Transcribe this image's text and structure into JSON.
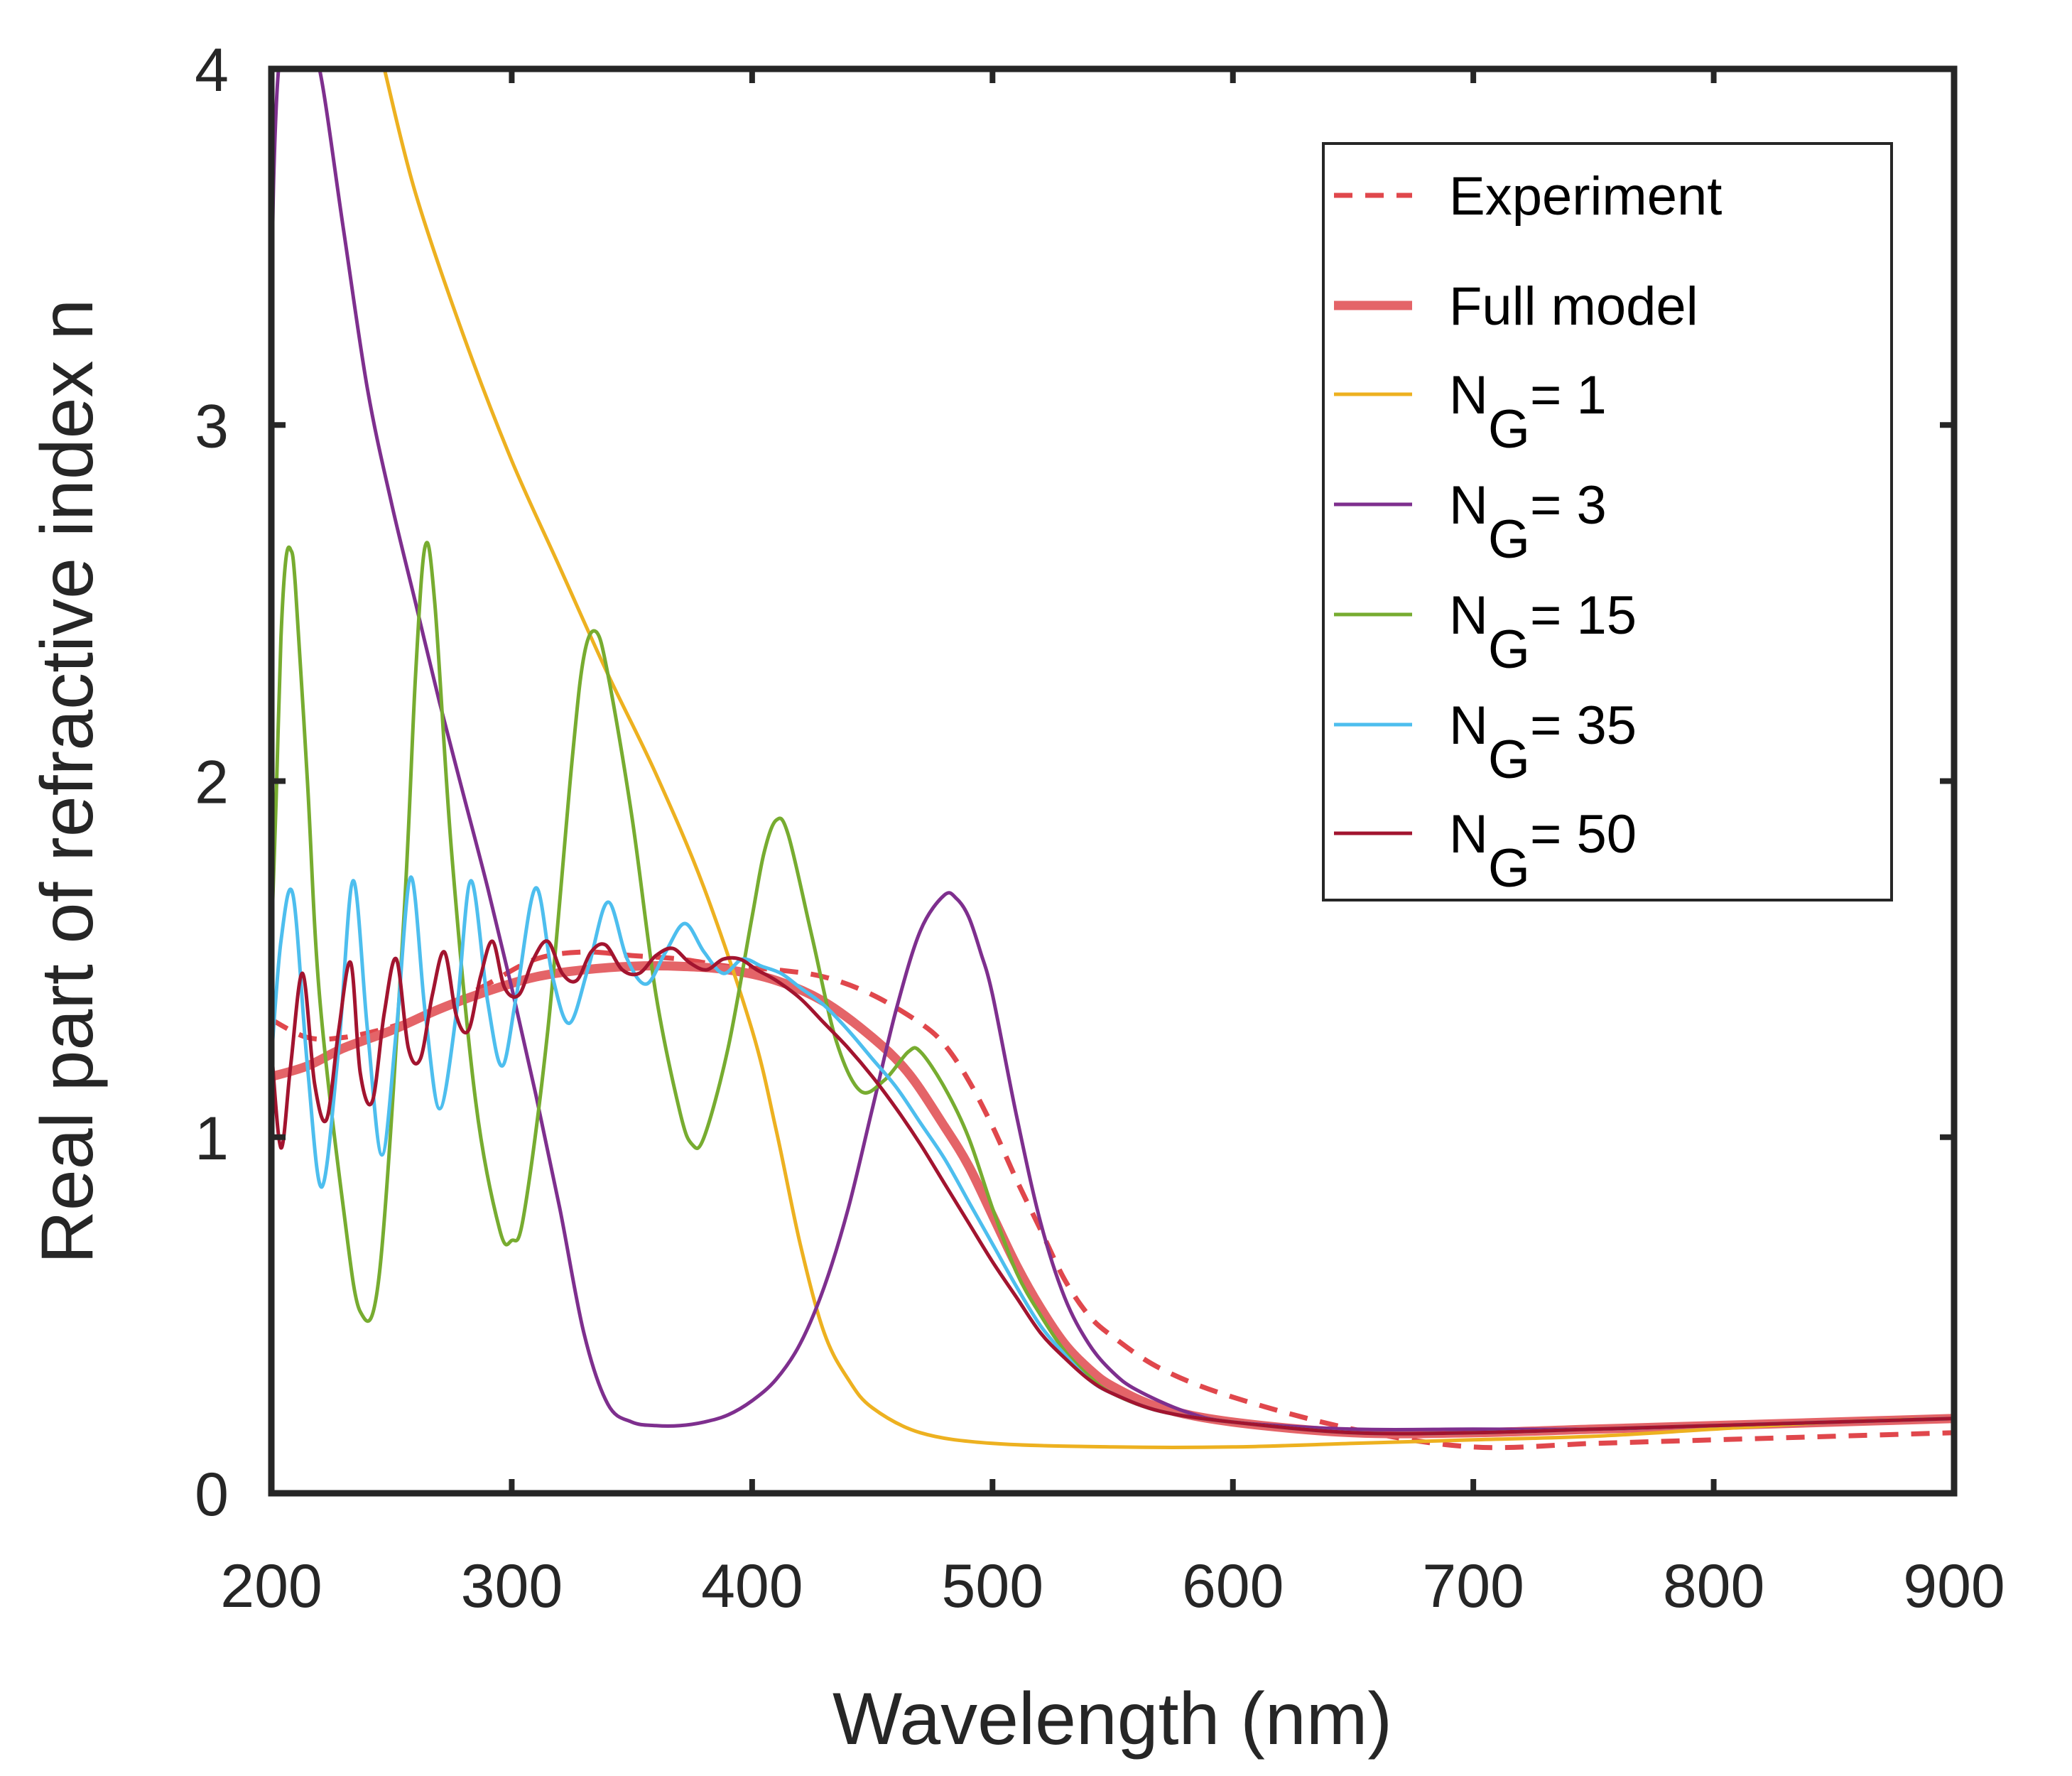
{
  "chart_data": {
    "type": "line",
    "xlabel": "Wavelength (nm)",
    "ylabel": "Real part of refractive index n",
    "xlim": [
      200,
      900
    ],
    "ylim": [
      0,
      4
    ],
    "xticks": [
      200,
      300,
      400,
      500,
      600,
      700,
      800,
      900
    ],
    "yticks": [
      0,
      1,
      2,
      3,
      4
    ],
    "grid": false,
    "legend_position": "top-right",
    "series": [
      {
        "name": "Experiment",
        "legend_main": "Experiment",
        "legend_sub": "",
        "legend_tail": "",
        "color": "#e0474c",
        "style": "dashed",
        "x": [
          200,
          215,
          230,
          250,
          270,
          290,
          310,
          330,
          350,
          370,
          390,
          410,
          430,
          450,
          470,
          480,
          490,
          500,
          510,
          520,
          530,
          540,
          550,
          570,
          600,
          650,
          700,
          750,
          800,
          850,
          900
        ],
        "y": [
          1.33,
          1.28,
          1.28,
          1.31,
          1.36,
          1.43,
          1.5,
          1.52,
          1.51,
          1.5,
          1.48,
          1.47,
          1.45,
          1.4,
          1.32,
          1.26,
          1.16,
          1.03,
          0.88,
          0.74,
          0.6,
          0.5,
          0.44,
          0.35,
          0.27,
          0.18,
          0.13,
          0.14,
          0.15,
          0.16,
          0.17
        ]
      },
      {
        "name": "Full model",
        "legend_main": "Full model",
        "legend_sub": "",
        "legend_tail": "",
        "color": "#e46468",
        "style": "thick",
        "x": [
          200,
          215,
          230,
          250,
          270,
          290,
          310,
          330,
          350,
          370,
          390,
          410,
          430,
          450,
          465,
          480,
          490,
          500,
          510,
          520,
          530,
          540,
          550,
          570,
          600,
          650,
          700,
          750,
          800,
          850,
          900
        ],
        "y": [
          1.17,
          1.2,
          1.25,
          1.3,
          1.36,
          1.41,
          1.45,
          1.47,
          1.48,
          1.48,
          1.47,
          1.44,
          1.38,
          1.28,
          1.18,
          1.03,
          0.92,
          0.78,
          0.64,
          0.52,
          0.42,
          0.35,
          0.3,
          0.24,
          0.2,
          0.17,
          0.17,
          0.18,
          0.19,
          0.2,
          0.21
        ]
      },
      {
        "name": "N_G = 1",
        "legend_main": "N",
        "legend_sub": "G",
        "legend_tail": "= 1",
        "color": "#edb120",
        "style": "solid",
        "x": [
          247,
          260,
          280,
          300,
          320,
          340,
          360,
          380,
          400,
          410,
          420,
          430,
          440,
          450,
          470,
          500,
          550,
          600,
          650,
          700,
          750,
          800,
          850,
          900
        ],
        "y": [
          4.0,
          3.65,
          3.25,
          2.9,
          2.6,
          2.3,
          2.02,
          1.7,
          1.3,
          1.02,
          0.7,
          0.45,
          0.32,
          0.24,
          0.17,
          0.14,
          0.13,
          0.13,
          0.14,
          0.15,
          0.16,
          0.18,
          0.2,
          0.21
        ]
      },
      {
        "name": "N_G = 3",
        "legend_main": "N",
        "legend_sub": "G",
        "legend_tail": "= 3",
        "color": "#7e2f8e",
        "style": "solid",
        "x": [
          200,
          201,
          203,
          205,
          210,
          215,
          220,
          230,
          240,
          250,
          260,
          270,
          280,
          290,
          300,
          310,
          320,
          330,
          340,
          350,
          360,
          370,
          380,
          390,
          400,
          410,
          420,
          430,
          440,
          450,
          460,
          470,
          480,
          485,
          490,
          495,
          500,
          510,
          520,
          530,
          540,
          550,
          560,
          580,
          600,
          650,
          700,
          750,
          800,
          850,
          900
        ],
        "y": [
          3.3,
          3.7,
          4.0,
          4.0,
          4.0,
          4.0,
          4.0,
          3.55,
          3.1,
          2.78,
          2.5,
          2.22,
          1.96,
          1.7,
          1.42,
          1.12,
          0.8,
          0.45,
          0.25,
          0.2,
          0.19,
          0.19,
          0.2,
          0.22,
          0.26,
          0.32,
          0.42,
          0.58,
          0.8,
          1.08,
          1.36,
          1.58,
          1.68,
          1.67,
          1.62,
          1.52,
          1.4,
          1.06,
          0.76,
          0.55,
          0.42,
          0.34,
          0.29,
          0.23,
          0.2,
          0.18,
          0.18,
          0.18,
          0.19,
          0.2,
          0.21
        ]
      },
      {
        "name": "N_G = 15",
        "legend_main": "N",
        "legend_sub": "G",
        "legend_tail": "= 15",
        "color": "#77ac30",
        "style": "solid",
        "x": [
          200,
          202,
          204,
          206,
          208,
          210,
          215,
          220,
          230,
          237,
          245,
          255,
          260,
          264,
          268,
          275,
          285,
          295,
          300,
          305,
          315,
          325,
          330,
          335,
          340,
          350,
          360,
          370,
          375,
          380,
          390,
          400,
          405,
          410,
          415,
          425,
          435,
          445,
          455,
          465,
          470,
          480,
          490,
          500,
          510,
          520,
          530,
          540,
          550,
          570,
          600,
          650,
          700,
          750,
          800,
          850,
          900
        ],
        "y": [
          1.55,
          1.95,
          2.4,
          2.62,
          2.65,
          2.55,
          2.0,
          1.4,
          0.8,
          0.51,
          0.62,
          1.6,
          2.3,
          2.66,
          2.5,
          1.8,
          1.1,
          0.74,
          0.71,
          0.78,
          1.3,
          2.05,
          2.35,
          2.42,
          2.3,
          1.9,
          1.4,
          1.07,
          0.98,
          1.0,
          1.25,
          1.62,
          1.8,
          1.89,
          1.85,
          1.56,
          1.27,
          1.13,
          1.16,
          1.24,
          1.24,
          1.14,
          1.0,
          0.8,
          0.62,
          0.5,
          0.4,
          0.33,
          0.28,
          0.23,
          0.2,
          0.17,
          0.17,
          0.18,
          0.19,
          0.2,
          0.21
        ]
      },
      {
        "name": "N_G = 35",
        "legend_main": "N",
        "legend_sub": "G",
        "legend_tail": "= 35",
        "color": "#4dbeee",
        "style": "solid",
        "x": [
          200,
          204,
          209,
          215,
          221,
          228,
          234,
          240,
          246,
          252,
          258,
          264,
          270,
          277,
          283,
          290,
          296,
          302,
          310,
          317,
          324,
          332,
          340,
          348,
          356,
          364,
          372,
          380,
          388,
          396,
          404,
          412,
          420,
          430,
          440,
          450,
          460,
          470,
          480,
          490,
          500,
          510,
          520,
          530,
          540,
          550,
          570,
          600,
          650,
          700,
          750,
          800,
          850,
          900
        ],
        "y": [
          1.22,
          1.55,
          1.68,
          1.2,
          0.86,
          1.25,
          1.72,
          1.3,
          0.95,
          1.3,
          1.73,
          1.35,
          1.08,
          1.35,
          1.72,
          1.38,
          1.2,
          1.4,
          1.7,
          1.45,
          1.32,
          1.48,
          1.66,
          1.5,
          1.43,
          1.52,
          1.6,
          1.52,
          1.46,
          1.5,
          1.48,
          1.46,
          1.42,
          1.37,
          1.3,
          1.22,
          1.14,
          1.04,
          0.94,
          0.82,
          0.7,
          0.58,
          0.47,
          0.39,
          0.32,
          0.28,
          0.23,
          0.2,
          0.17,
          0.17,
          0.18,
          0.19,
          0.2,
          0.21
        ]
      },
      {
        "name": "N_G = 50",
        "legend_main": "N",
        "legend_sub": "G",
        "legend_tail": "= 50",
        "color": "#a2142f",
        "style": "solid",
        "x": [
          200,
          204,
          208,
          213,
          218,
          223,
          228,
          233,
          237,
          242,
          247,
          252,
          257,
          262,
          267,
          272,
          277,
          282,
          287,
          292,
          297,
          303,
          309,
          315,
          321,
          327,
          333,
          339,
          346,
          353,
          360,
          367,
          374,
          381,
          388,
          395,
          402,
          410,
          420,
          430,
          440,
          450,
          460,
          470,
          480,
          490,
          500,
          510,
          520,
          530,
          540,
          550,
          570,
          600,
          650,
          700,
          750,
          800,
          850,
          900
        ],
        "y": [
          1.25,
          0.97,
          1.2,
          1.46,
          1.15,
          1.05,
          1.3,
          1.49,
          1.18,
          1.1,
          1.35,
          1.5,
          1.25,
          1.22,
          1.4,
          1.52,
          1.34,
          1.3,
          1.45,
          1.55,
          1.42,
          1.4,
          1.5,
          1.55,
          1.46,
          1.44,
          1.52,
          1.54,
          1.47,
          1.46,
          1.51,
          1.53,
          1.49,
          1.47,
          1.5,
          1.5,
          1.47,
          1.44,
          1.39,
          1.32,
          1.25,
          1.17,
          1.08,
          0.98,
          0.87,
          0.76,
          0.65,
          0.55,
          0.45,
          0.38,
          0.32,
          0.28,
          0.23,
          0.2,
          0.17,
          0.17,
          0.18,
          0.19,
          0.2,
          0.21
        ]
      }
    ]
  }
}
